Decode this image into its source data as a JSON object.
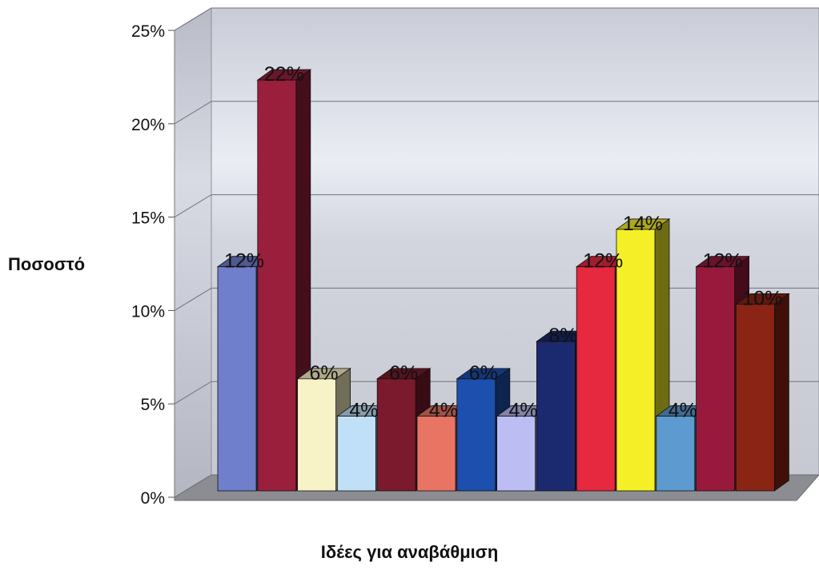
{
  "chart_data": {
    "type": "bar",
    "title": "",
    "ylabel": "Ποσοστό",
    "xlabel": "Ιδέες για αναβάθμιση",
    "ylim": [
      0,
      25
    ],
    "yticks": [
      "0%",
      "5%",
      "10%",
      "15%",
      "20%",
      "25%"
    ],
    "grid": true,
    "bar_style": "3d",
    "values": [
      12,
      22,
      6,
      4,
      6,
      4,
      6,
      4,
      8,
      12,
      14,
      4,
      12,
      10
    ],
    "value_labels": [
      "12%",
      "22%",
      "6%",
      "4%",
      "6%",
      "4%",
      "6%",
      "4%",
      "8%",
      "12%",
      "14%",
      "4%",
      "12%",
      "10%"
    ],
    "colors": [
      "#6f7fcb",
      "#9a1f3c",
      "#f8f3c6",
      "#bfe0f6",
      "#7b1a2c",
      "#e87563",
      "#1c4fae",
      "#bcbdf2",
      "#1b2a6e",
      "#e6293f",
      "#f5ef28",
      "#5c9ad0",
      "#98193c",
      "#8a2414"
    ]
  }
}
